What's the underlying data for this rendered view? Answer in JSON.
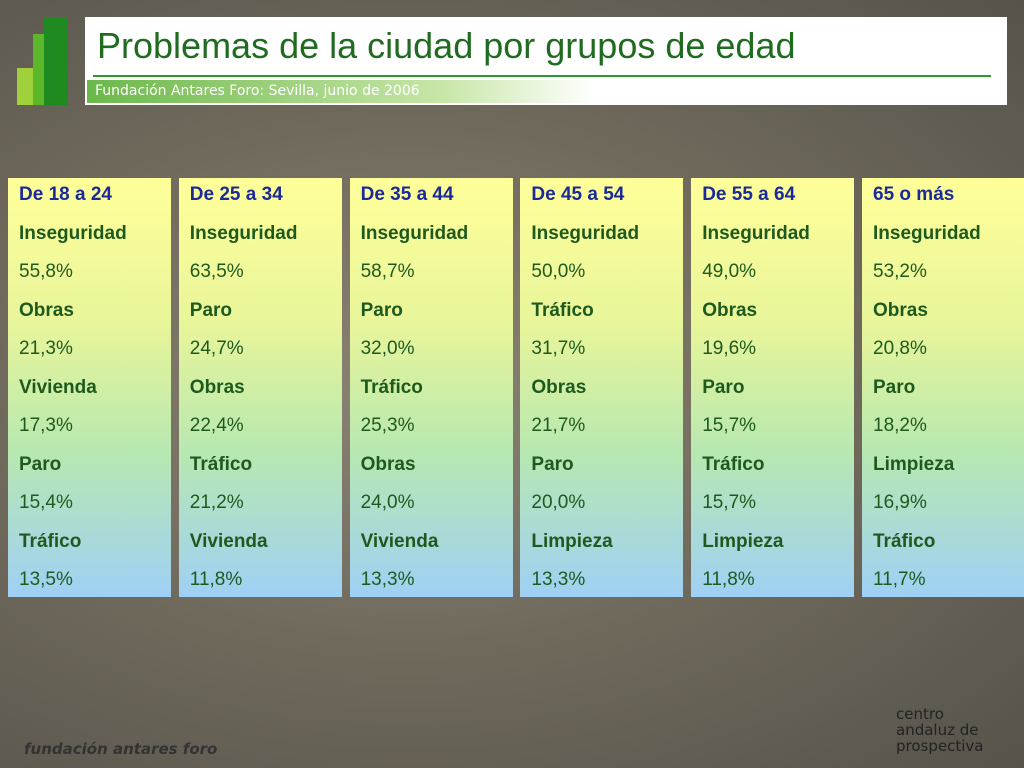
{
  "header": {
    "title": "Problemas de la ciudad por grupos de edad",
    "subtitle": "Fundación Antares Foro: Sevilla, junio de 2006"
  },
  "columns": [
    {
      "heading": "De 18 a 24",
      "items": [
        {
          "label": "Inseguridad",
          "value": "55,8%"
        },
        {
          "label": "Obras",
          "value": "21,3%"
        },
        {
          "label": "Vivienda",
          "value": "17,3%"
        },
        {
          "label": "Paro",
          "value": "15,4%"
        },
        {
          "label": "Tráfico",
          "value": "13,5%"
        }
      ]
    },
    {
      "heading": "De 25 a 34",
      "items": [
        {
          "label": "Inseguridad",
          "value": "63,5%"
        },
        {
          "label": "Paro",
          "value": "24,7%"
        },
        {
          "label": "Obras",
          "value": "22,4%"
        },
        {
          "label": "Tráfico",
          "value": "21,2%"
        },
        {
          "label": "Vivienda",
          "value": "11,8%"
        }
      ]
    },
    {
      "heading": "De 35 a 44",
      "items": [
        {
          "label": "Inseguridad",
          "value": "58,7%"
        },
        {
          "label": "Paro",
          "value": "32,0%"
        },
        {
          "label": "Tráfico",
          "value": "25,3%"
        },
        {
          "label": "Obras",
          "value": "24,0%"
        },
        {
          "label": "Vivienda",
          "value": "13,3%"
        }
      ]
    },
    {
      "heading": "De 45 a 54",
      "items": [
        {
          "label": "Inseguridad",
          "value": "50,0%"
        },
        {
          "label": "Tráfico",
          "value": "31,7%"
        },
        {
          "label": "Obras",
          "value": "21,7%"
        },
        {
          "label": "Paro",
          "value": "20,0%"
        },
        {
          "label": "Limpieza",
          "value": "13,3%"
        }
      ]
    },
    {
      "heading": "De 55 a 64",
      "items": [
        {
          "label": "Inseguridad",
          "value": "49,0%"
        },
        {
          "label": "Obras",
          "value": "19,6%"
        },
        {
          "label": "Paro",
          "value": "15,7%"
        },
        {
          "label": "Tráfico",
          "value": "15,7%"
        },
        {
          "label": "Limpieza",
          "value": "11,8%"
        }
      ]
    },
    {
      "heading": "65 o más",
      "items": [
        {
          "label": "Inseguridad",
          "value": "53,2%"
        },
        {
          "label": "Obras",
          "value": "20,8%"
        },
        {
          "label": "Paro",
          "value": "18,2%"
        },
        {
          "label": "Limpieza",
          "value": "16,9%"
        },
        {
          "label": "Tráfico",
          "value": "11,7%"
        }
      ]
    }
  ],
  "footer": {
    "left": "fundación antares foro",
    "right": [
      "centro",
      "andaluz de",
      "prospectiva"
    ]
  }
}
